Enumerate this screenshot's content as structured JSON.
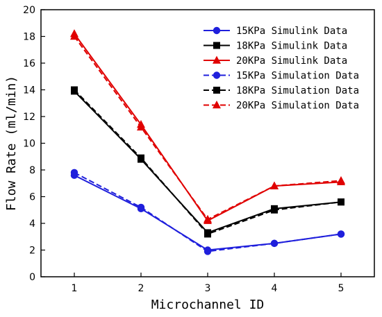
{
  "chart_data": {
    "type": "line",
    "title": "",
    "xlabel": "Microchannel ID",
    "ylabel": "Flow Rate (ml/min)",
    "x": [
      1,
      2,
      3,
      4,
      5
    ],
    "xlim": [
      0.5,
      5.5
    ],
    "ylim": [
      0,
      20
    ],
    "xticks": [
      1,
      2,
      3,
      4,
      5
    ],
    "yticks": [
      0,
      2,
      4,
      6,
      8,
      10,
      12,
      14,
      16,
      18,
      20
    ],
    "grid": false,
    "legend_position": "top-right",
    "series": [
      {
        "name": "15KPa Simulink Data",
        "values": [
          7.6,
          5.1,
          2.0,
          2.5,
          3.2
        ],
        "color": "#1f1fdc",
        "marker": "circle",
        "dash": "solid"
      },
      {
        "name": "18KPa Simulink Data",
        "values": [
          13.9,
          8.8,
          3.3,
          5.1,
          5.6
        ],
        "color": "#000000",
        "marker": "square",
        "dash": "solid"
      },
      {
        "name": "20KPa Simulink Data",
        "values": [
          18.2,
          11.4,
          4.2,
          6.8,
          7.1
        ],
        "color": "#e00000",
        "marker": "triangle",
        "dash": "solid"
      },
      {
        "name": "15KPa Simulation Data",
        "values": [
          7.8,
          5.2,
          1.9,
          2.5,
          3.2
        ],
        "color": "#1f1fdc",
        "marker": "circle",
        "dash": "dashed"
      },
      {
        "name": "18KPa Simulation Data",
        "values": [
          14.0,
          8.9,
          3.2,
          5.0,
          5.6
        ],
        "color": "#000000",
        "marker": "square",
        "dash": "dashed"
      },
      {
        "name": "20KPa Simulation Data",
        "values": [
          18.0,
          11.2,
          4.3,
          6.8,
          7.2
        ],
        "color": "#e00000",
        "marker": "triangle",
        "dash": "dashed"
      }
    ]
  }
}
